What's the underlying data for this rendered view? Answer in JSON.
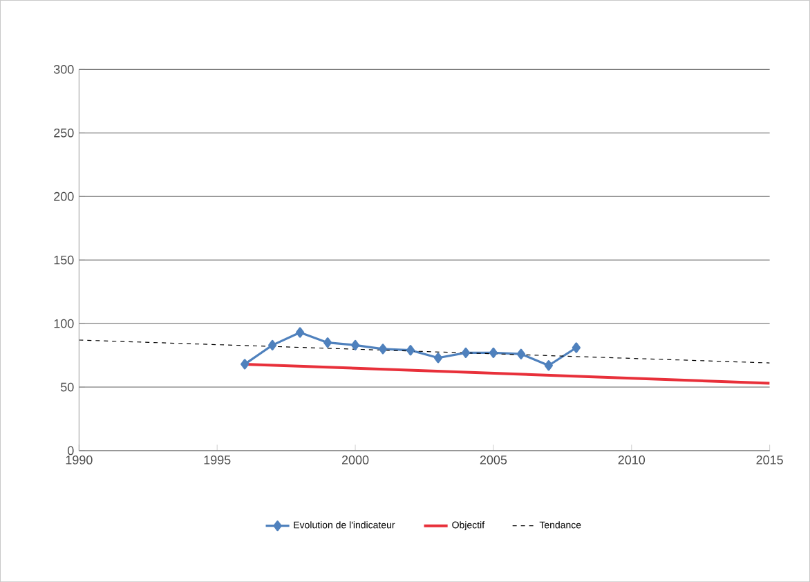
{
  "chart_data": {
    "type": "line",
    "xlim": [
      1990,
      2015
    ],
    "ylim": [
      0,
      300
    ],
    "xticks": [
      1990,
      1995,
      2000,
      2005,
      2010,
      2015
    ],
    "yticks": [
      0,
      50,
      100,
      150,
      200,
      250,
      300
    ],
    "grid": "y",
    "legend": "bottom",
    "series": [
      {
        "name": "Evolution de l'indicateur",
        "color": "#4f81bd",
        "marker": "diamond",
        "x": [
          1996,
          1997,
          1998,
          1999,
          2000,
          2001,
          2002,
          2003,
          2004,
          2005,
          2006,
          2007,
          2008
        ],
        "values": [
          68,
          83,
          93,
          85,
          83,
          80,
          79,
          73,
          77,
          77,
          76,
          67,
          81
        ]
      },
      {
        "name": "Objectif",
        "color": "#e8303a",
        "marker": "none",
        "x": [
          1996,
          2015
        ],
        "values": [
          68,
          53
        ]
      },
      {
        "name": "Tendance",
        "color": "#000000",
        "marker": "none",
        "line_style": "dashed",
        "x": [
          1990,
          2015
        ],
        "values": [
          87,
          69
        ]
      }
    ]
  }
}
